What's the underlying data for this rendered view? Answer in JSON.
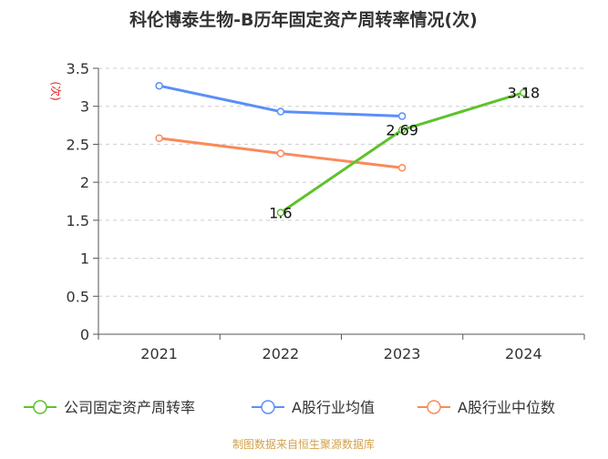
{
  "chart_data": {
    "type": "line",
    "title": "科伦博泰生物-B历年固定资产周转率情况(次)",
    "ylabel": "(次)",
    "xlabel": "",
    "categories": [
      "2021",
      "2022",
      "2023",
      "2024"
    ],
    "ylim": [
      0,
      3.5
    ],
    "yticks": [
      "0",
      "0.5",
      "1",
      "1.5",
      "2",
      "2.5",
      "3",
      "3.5"
    ],
    "grid": true,
    "legend_position": "bottom",
    "series": [
      {
        "name": "公司固定资产周转率",
        "color": "#5ec22c",
        "values": [
          null,
          1.6,
          2.69,
          3.18
        ],
        "labels": [
          null,
          "1.6",
          "2.69",
          "3.18"
        ]
      },
      {
        "name": "A股行业均值",
        "color": "#5b8ff9",
        "values": [
          3.27,
          2.93,
          2.87,
          null
        ]
      },
      {
        "name": "A股行业中位数",
        "color": "#f98b5b",
        "values": [
          2.58,
          2.38,
          2.19,
          null
        ]
      }
    ],
    "source": "制图数据来自恒生聚源数据库",
    "source_color": "#d4a24a"
  }
}
